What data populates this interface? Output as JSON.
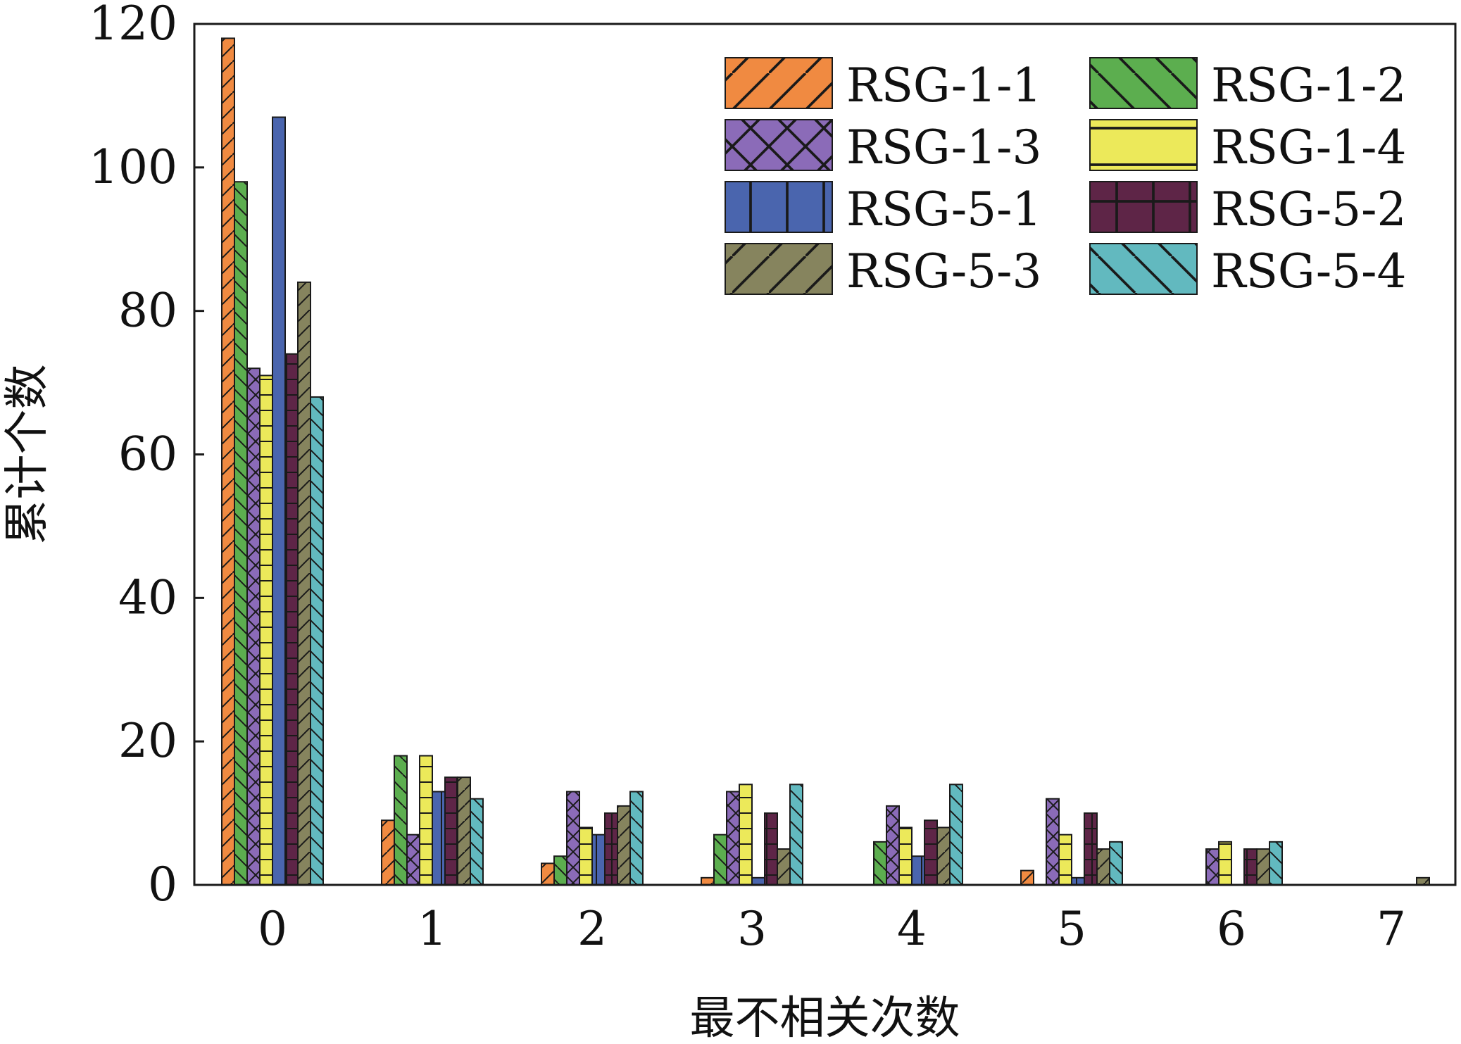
{
  "chart_data": {
    "type": "bar",
    "title": "",
    "xlabel": "最不相关次数",
    "ylabel": "累计个数",
    "ylim": [
      0,
      120
    ],
    "yticks": [
      "0",
      "20",
      "40",
      "60",
      "80",
      "100",
      "120"
    ],
    "categories": [
      "0",
      "1",
      "2",
      "3",
      "4",
      "5",
      "6",
      "7"
    ],
    "grid": false,
    "legend_position": "top-right",
    "series": [
      {
        "name": "RSG-1-1",
        "color": "#f08a41",
        "pattern": "diag-forward",
        "values": [
          118,
          9,
          3,
          1,
          0,
          2,
          0,
          0
        ]
      },
      {
        "name": "RSG-1-2",
        "color": "#5cae4f",
        "pattern": "diag-back",
        "values": [
          98,
          18,
          4,
          7,
          6,
          0,
          0,
          0
        ]
      },
      {
        "name": "RSG-1-3",
        "color": "#8b6bb8",
        "pattern": "cross-diag",
        "values": [
          72,
          7,
          13,
          13,
          11,
          12,
          5,
          0
        ]
      },
      {
        "name": "RSG-1-4",
        "color": "#ece95a",
        "pattern": "horizontal",
        "values": [
          71,
          18,
          8,
          14,
          8,
          7,
          6,
          0
        ]
      },
      {
        "name": "RSG-5-1",
        "color": "#4a65ae",
        "pattern": "vertical",
        "values": [
          107,
          13,
          7,
          1,
          4,
          1,
          0,
          0
        ]
      },
      {
        "name": "RSG-5-2",
        "color": "#5e2547",
        "pattern": "grid",
        "values": [
          74,
          15,
          10,
          10,
          9,
          10,
          5,
          0
        ]
      },
      {
        "name": "RSG-5-3",
        "color": "#86845e",
        "pattern": "diag-forward",
        "values": [
          84,
          15,
          11,
          5,
          8,
          5,
          5,
          1
        ]
      },
      {
        "name": "RSG-5-4",
        "color": "#62b9bf",
        "pattern": "diag-back",
        "values": [
          68,
          12,
          13,
          14,
          14,
          6,
          6,
          0
        ]
      }
    ]
  }
}
